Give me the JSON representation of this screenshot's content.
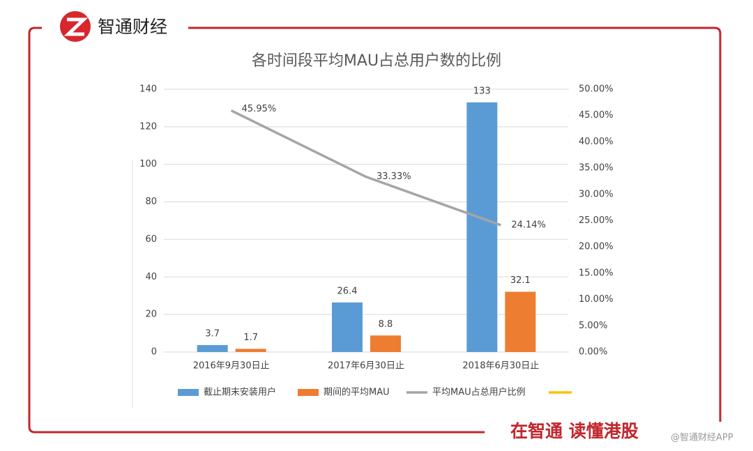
{
  "brand": "智通财经",
  "slogan": "在智通  读懂港股",
  "watermark": "@智通财经APP",
  "chart_data": {
    "type": "bar",
    "title": "各时间段平均MAU占总用户数的比例",
    "categories": [
      "2016年9月30日止",
      "2017年6月30日止",
      "2018年6月30日止"
    ],
    "series": [
      {
        "name": "截止期末安装用户",
        "color": "#5b9bd5",
        "type": "bar",
        "values": [
          3.7,
          26.4,
          133
        ]
      },
      {
        "name": "期间的平均MAU",
        "color": "#ed7d31",
        "type": "bar",
        "values": [
          1.7,
          8.8,
          32.1
        ]
      },
      {
        "name": "平均MAU占总用户比例",
        "color": "#a5a5a5",
        "type": "line",
        "axis": "y2",
        "values": [
          45.95,
          33.33,
          24.14
        ],
        "value_labels": [
          "45.95%",
          "33.33%",
          "24.14%"
        ]
      }
    ],
    "ylim": [
      0,
      140
    ],
    "yticks": [
      0,
      20,
      40,
      60,
      80,
      100,
      120,
      140
    ],
    "y2lim": [
      0,
      50
    ],
    "y2ticks": [
      {
        "value": 0,
        "label": "0.00%"
      },
      {
        "value": 5,
        "label": "5.00%"
      },
      {
        "value": 10,
        "label": "10.00%"
      },
      {
        "value": 15,
        "label": "15.00%"
      },
      {
        "value": 20,
        "label": "20.00%"
      },
      {
        "value": 25,
        "label": "25.00%"
      },
      {
        "value": 30,
        "label": "30.00%"
      },
      {
        "value": 35,
        "label": "35.00%"
      },
      {
        "value": 40,
        "label": "40.00%"
      },
      {
        "value": 45,
        "label": "45.00%"
      },
      {
        "value": 50,
        "label": "50.00%"
      }
    ],
    "grid": true,
    "legend": "bottom"
  }
}
